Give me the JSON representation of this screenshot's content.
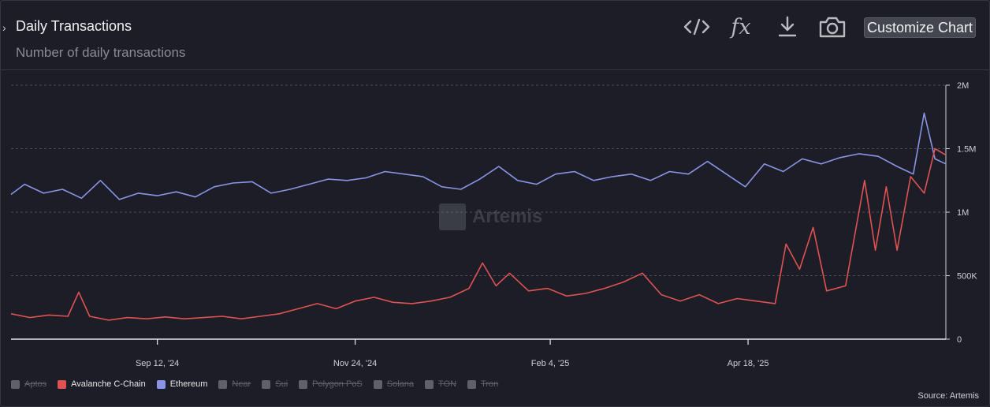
{
  "header": {
    "title": "Daily Transactions",
    "subtitle": "Number of daily transactions",
    "customize_label": "Customize Chart",
    "tools": [
      "code-icon",
      "fx-icon",
      "download-icon",
      "camera-icon"
    ],
    "fx_label": "fx"
  },
  "watermark": "Artemis",
  "source": "Source: Artemis",
  "legend": [
    {
      "label": "Aptos",
      "color": "#5f6168",
      "active": false
    },
    {
      "label": "Avalanche C-Chain",
      "color": "#e05252",
      "active": true
    },
    {
      "label": "Ethereum",
      "color": "#8a94e6",
      "active": true
    },
    {
      "label": "Near",
      "color": "#5f6168",
      "active": false
    },
    {
      "label": "Sui",
      "color": "#5f6168",
      "active": false
    },
    {
      "label": "Polygon PoS",
      "color": "#5f6168",
      "active": false
    },
    {
      "label": "Solana",
      "color": "#5f6168",
      "active": false
    },
    {
      "label": "TON",
      "color": "#5f6168",
      "active": false
    },
    {
      "label": "Tron",
      "color": "#5f6168",
      "active": false
    }
  ],
  "chart_data": {
    "type": "line",
    "x_start": "2024-07-20",
    "x_end": "2025-06-30",
    "x_ticks": [
      "Sep 12, '24",
      "Nov 24, '24",
      "Feb 4, '25",
      "Apr 18, '25"
    ],
    "y_ticks": [
      "0",
      "500K",
      "1M",
      "1.5M",
      "2M"
    ],
    "ylim": [
      0,
      2000000
    ],
    "grid": true,
    "series": [
      {
        "name": "Ethereum",
        "color": "#8a94e6",
        "points": [
          [
            "2024-07-20",
            1140000
          ],
          [
            "2024-07-25",
            1220000
          ],
          [
            "2024-08-01",
            1150000
          ],
          [
            "2024-08-08",
            1180000
          ],
          [
            "2024-08-15",
            1110000
          ],
          [
            "2024-08-22",
            1250000
          ],
          [
            "2024-08-29",
            1100000
          ],
          [
            "2024-09-05",
            1150000
          ],
          [
            "2024-09-12",
            1130000
          ],
          [
            "2024-09-19",
            1160000
          ],
          [
            "2024-09-26",
            1120000
          ],
          [
            "2024-10-03",
            1200000
          ],
          [
            "2024-10-10",
            1230000
          ],
          [
            "2024-10-17",
            1240000
          ],
          [
            "2024-10-24",
            1150000
          ],
          [
            "2024-10-31",
            1180000
          ],
          [
            "2024-11-07",
            1220000
          ],
          [
            "2024-11-14",
            1260000
          ],
          [
            "2024-11-21",
            1250000
          ],
          [
            "2024-11-28",
            1270000
          ],
          [
            "2024-12-05",
            1320000
          ],
          [
            "2024-12-12",
            1300000
          ],
          [
            "2024-12-19",
            1280000
          ],
          [
            "2024-12-26",
            1200000
          ],
          [
            "2025-01-02",
            1180000
          ],
          [
            "2025-01-09",
            1260000
          ],
          [
            "2025-01-16",
            1360000
          ],
          [
            "2025-01-23",
            1250000
          ],
          [
            "2025-01-30",
            1220000
          ],
          [
            "2025-02-06",
            1300000
          ],
          [
            "2025-02-13",
            1320000
          ],
          [
            "2025-02-20",
            1250000
          ],
          [
            "2025-02-27",
            1280000
          ],
          [
            "2025-03-06",
            1300000
          ],
          [
            "2025-03-13",
            1250000
          ],
          [
            "2025-03-20",
            1320000
          ],
          [
            "2025-03-27",
            1300000
          ],
          [
            "2025-04-03",
            1400000
          ],
          [
            "2025-04-10",
            1300000
          ],
          [
            "2025-04-17",
            1200000
          ],
          [
            "2025-04-24",
            1380000
          ],
          [
            "2025-05-01",
            1320000
          ],
          [
            "2025-05-08",
            1420000
          ],
          [
            "2025-05-15",
            1380000
          ],
          [
            "2025-05-22",
            1430000
          ],
          [
            "2025-05-29",
            1460000
          ],
          [
            "2025-06-05",
            1440000
          ],
          [
            "2025-06-12",
            1360000
          ],
          [
            "2025-06-18",
            1300000
          ],
          [
            "2025-06-22",
            1780000
          ],
          [
            "2025-06-26",
            1420000
          ],
          [
            "2025-06-30",
            1380000
          ]
        ]
      },
      {
        "name": "Avalanche C-Chain",
        "color": "#e05252",
        "points": [
          [
            "2024-07-20",
            200000
          ],
          [
            "2024-07-27",
            170000
          ],
          [
            "2024-08-03",
            190000
          ],
          [
            "2024-08-10",
            180000
          ],
          [
            "2024-08-14",
            370000
          ],
          [
            "2024-08-18",
            180000
          ],
          [
            "2024-08-25",
            150000
          ],
          [
            "2024-09-01",
            170000
          ],
          [
            "2024-09-08",
            160000
          ],
          [
            "2024-09-15",
            175000
          ],
          [
            "2024-09-22",
            160000
          ],
          [
            "2024-09-29",
            170000
          ],
          [
            "2024-10-06",
            180000
          ],
          [
            "2024-10-13",
            160000
          ],
          [
            "2024-10-20",
            180000
          ],
          [
            "2024-10-27",
            200000
          ],
          [
            "2024-11-03",
            240000
          ],
          [
            "2024-11-10",
            280000
          ],
          [
            "2024-11-17",
            240000
          ],
          [
            "2024-11-24",
            300000
          ],
          [
            "2024-12-01",
            330000
          ],
          [
            "2024-12-08",
            290000
          ],
          [
            "2024-12-15",
            280000
          ],
          [
            "2024-12-22",
            300000
          ],
          [
            "2024-12-29",
            330000
          ],
          [
            "2025-01-05",
            400000
          ],
          [
            "2025-01-10",
            600000
          ],
          [
            "2025-01-15",
            420000
          ],
          [
            "2025-01-20",
            520000
          ],
          [
            "2025-01-27",
            380000
          ],
          [
            "2025-02-03",
            400000
          ],
          [
            "2025-02-10",
            340000
          ],
          [
            "2025-02-17",
            360000
          ],
          [
            "2025-02-24",
            400000
          ],
          [
            "2025-03-03",
            450000
          ],
          [
            "2025-03-10",
            520000
          ],
          [
            "2025-03-17",
            350000
          ],
          [
            "2025-03-24",
            300000
          ],
          [
            "2025-03-31",
            350000
          ],
          [
            "2025-04-07",
            280000
          ],
          [
            "2025-04-14",
            320000
          ],
          [
            "2025-04-21",
            300000
          ],
          [
            "2025-04-28",
            280000
          ],
          [
            "2025-05-02",
            750000
          ],
          [
            "2025-05-07",
            550000
          ],
          [
            "2025-05-12",
            880000
          ],
          [
            "2025-05-17",
            380000
          ],
          [
            "2025-05-24",
            420000
          ],
          [
            "2025-05-31",
            1250000
          ],
          [
            "2025-06-04",
            700000
          ],
          [
            "2025-06-08",
            1200000
          ],
          [
            "2025-06-12",
            700000
          ],
          [
            "2025-06-17",
            1280000
          ],
          [
            "2025-06-22",
            1150000
          ],
          [
            "2025-06-26",
            1500000
          ],
          [
            "2025-06-30",
            1450000
          ]
        ]
      }
    ]
  }
}
